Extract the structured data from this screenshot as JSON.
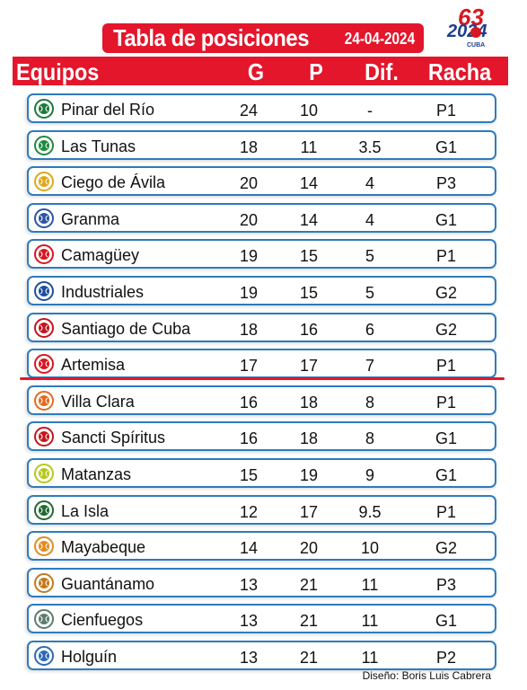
{
  "title": "Tabla de posiciones",
  "date": "24-04-2024",
  "logo": {
    "number": "63",
    "year": "2024",
    "country": "CUBA"
  },
  "columns": {
    "team": "Equipos",
    "g": "G",
    "p": "P",
    "dif": "Dif.",
    "streak": "Racha"
  },
  "rows": [
    {
      "team": "Pinar del Río",
      "g": "24",
      "p": "10",
      "dif": "-",
      "streak": "P1",
      "icon": "pinar-logo-icon",
      "color": "#1c7a3a"
    },
    {
      "team": "Las Tunas",
      "g": "18",
      "p": "11",
      "dif": "3.5",
      "streak": "G1",
      "icon": "las-tunas-logo-icon",
      "color": "#1e8a3e"
    },
    {
      "team": "Ciego de Ávila",
      "g": "20",
      "p": "14",
      "dif": "4",
      "streak": "P3",
      "icon": "ciego-logo-icon",
      "color": "#e0a81b"
    },
    {
      "team": "Granma",
      "g": "20",
      "p": "14",
      "dif": "4",
      "streak": "G1",
      "icon": "granma-logo-icon",
      "color": "#2a55a6"
    },
    {
      "team": "Camagüey",
      "g": "19",
      "p": "15",
      "dif": "5",
      "streak": "P1",
      "icon": "camaguey-logo-icon",
      "color": "#d8161f"
    },
    {
      "team": "Industriales",
      "g": "19",
      "p": "15",
      "dif": "5",
      "streak": "G2",
      "icon": "industriales-logo-icon",
      "color": "#1d4fa0"
    },
    {
      "team": "Santiago de Cuba",
      "g": "18",
      "p": "16",
      "dif": "6",
      "streak": "G2",
      "icon": "santiago-logo-icon",
      "color": "#c8141c"
    },
    {
      "team": "Artemisa",
      "g": "17",
      "p": "17",
      "dif": "7",
      "streak": "P1",
      "icon": "artemisa-logo-icon",
      "color": "#d8161f"
    },
    {
      "team": "Villa Clara",
      "g": "16",
      "p": "18",
      "dif": "8",
      "streak": "P1",
      "icon": "villa-clara-logo-icon",
      "color": "#e46b1c"
    },
    {
      "team": "Sancti Spíritus",
      "g": "16",
      "p": "18",
      "dif": "8",
      "streak": "G1",
      "icon": "sancti-logo-icon",
      "color": "#c6161d"
    },
    {
      "team": "Matanzas",
      "g": "15",
      "p": "19",
      "dif": "9",
      "streak": "G1",
      "icon": "matanzas-logo-icon",
      "color": "#b7c81b"
    },
    {
      "team": "La Isla",
      "g": "12",
      "p": "17",
      "dif": "9.5",
      "streak": "P1",
      "icon": "la-isla-logo-icon",
      "color": "#1e6a2e"
    },
    {
      "team": "Mayabeque",
      "g": "14",
      "p": "20",
      "dif": "10",
      "streak": "G2",
      "icon": "mayabeque-logo-icon",
      "color": "#e58a1e"
    },
    {
      "team": "Guantánamo",
      "g": "13",
      "p": "21",
      "dif": "11",
      "streak": "P3",
      "icon": "guantanamo-logo-icon",
      "color": "#c47a1c"
    },
    {
      "team": "Cienfuegos",
      "g": "13",
      "p": "21",
      "dif": "11",
      "streak": "G1",
      "icon": "cienfuegos-logo-icon",
      "color": "#5c7d6c"
    },
    {
      "team": "Holguín",
      "g": "13",
      "p": "21",
      "dif": "11",
      "streak": "P2",
      "icon": "holguin-logo-icon",
      "color": "#2b6ab8"
    }
  ],
  "credit": "Diseño: Boris Luis Cabrera",
  "colors": {
    "accent": "#e3162b",
    "row_border": "#2e7bbd"
  }
}
